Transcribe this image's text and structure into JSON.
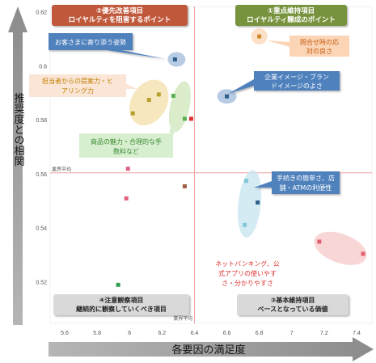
{
  "chart_data": {
    "type": "scatter",
    "xlabel": "各要因の満足度",
    "ylabel": "推奨度との相関",
    "xlim": [
      5.5,
      7.5
    ],
    "ylim": [
      0.51,
      0.62
    ],
    "x_ticks": [
      "5.6",
      "5.8",
      "6",
      "6.2",
      "6.4",
      "6.6",
      "6.8",
      "7",
      "7.2",
      "7.4"
    ],
    "y_ticks": [
      "0.52",
      "0.54",
      "0.56",
      "0.58",
      "0.6",
      "0.62"
    ],
    "avg_x": 6.4,
    "avg_y": 0.5605,
    "avg_label_x": "業界平均",
    "avg_label_y": "業界平均",
    "quadrants": [
      {
        "title": "②優先改善項目",
        "subtitle": "ロイヤルティを阻害するポイント",
        "color": "#c0583a"
      },
      {
        "title": "①重点維持項目",
        "subtitle": "ロイヤルティ醸成のポイント",
        "color": "#77933c"
      },
      {
        "title": "④注意観察項目",
        "subtitle": "継続的に観察していくべき項目",
        "color": "#d9d9d9"
      },
      {
        "title": "③基本維持項目",
        "subtitle": "ベースとなっている価値",
        "color": "#d9d9d9"
      }
    ],
    "points": [
      {
        "x": 6.28,
        "y": 0.6025,
        "color": "#2e5f8a"
      },
      {
        "x": 6.6,
        "y": 0.5888,
        "color": "#2e5f8a"
      },
      {
        "x": 6.8,
        "y": 0.611,
        "color": "#d08a30"
      },
      {
        "x": 6.18,
        "y": 0.5895,
        "color": "#b8a030"
      },
      {
        "x": 6.12,
        "y": 0.5875,
        "color": "#b8a030"
      },
      {
        "x": 6.02,
        "y": 0.5825,
        "color": "#b8a030"
      },
      {
        "x": 6.27,
        "y": 0.589,
        "color": "#5ab050"
      },
      {
        "x": 6.34,
        "y": 0.5805,
        "color": "#5ab050"
      },
      {
        "x": 6.38,
        "y": 0.5805,
        "color": "#e03030"
      },
      {
        "x": 5.99,
        "y": 0.562,
        "color": "#e06080"
      },
      {
        "x": 5.98,
        "y": 0.551,
        "color": "#e06080"
      },
      {
        "x": 6.34,
        "y": 0.5555,
        "color": "#a06040"
      },
      {
        "x": 6.72,
        "y": 0.5575,
        "color": "#80c8d8"
      },
      {
        "x": 6.79,
        "y": 0.5495,
        "color": "#2e5f8a"
      },
      {
        "x": 6.71,
        "y": 0.5412,
        "color": "#80c8d8"
      },
      {
        "x": 7.17,
        "y": 0.535,
        "color": "#e06070"
      },
      {
        "x": 7.44,
        "y": 0.5305,
        "color": "#e06070"
      },
      {
        "x": 5.93,
        "y": 0.519,
        "color": "#30a050"
      }
    ],
    "callouts": [
      {
        "text": "お客さまに寄り添う姿勢",
        "color": "#4f81bd",
        "text_color": "#ffffff"
      },
      {
        "text": "問合せ時の応対の良さ",
        "color": "#fbd5b5",
        "text_color": "#c55a11"
      },
      {
        "text": "企業イメージ・ブランドイメージのよさ",
        "color": "#4f81bd",
        "text_color": "#ffffff"
      },
      {
        "text": "担当者からの提案力・ヒアリング力",
        "color": "#fbe5d6",
        "text_color": "#c08000"
      },
      {
        "text": "商品の魅力・合理的な手数料など",
        "color": "#d7eecf",
        "text_color": "#3a8a30"
      },
      {
        "text": "手続きの簡単さ、店舗・ATMの利便性",
        "color": "#4f81bd",
        "text_color": "#ffffff"
      },
      {
        "text": "ネットバンキング、公式アプリの使いやすさ・分かりやすさ",
        "color": "#ffffff",
        "text_color": "#e03030"
      }
    ]
  }
}
